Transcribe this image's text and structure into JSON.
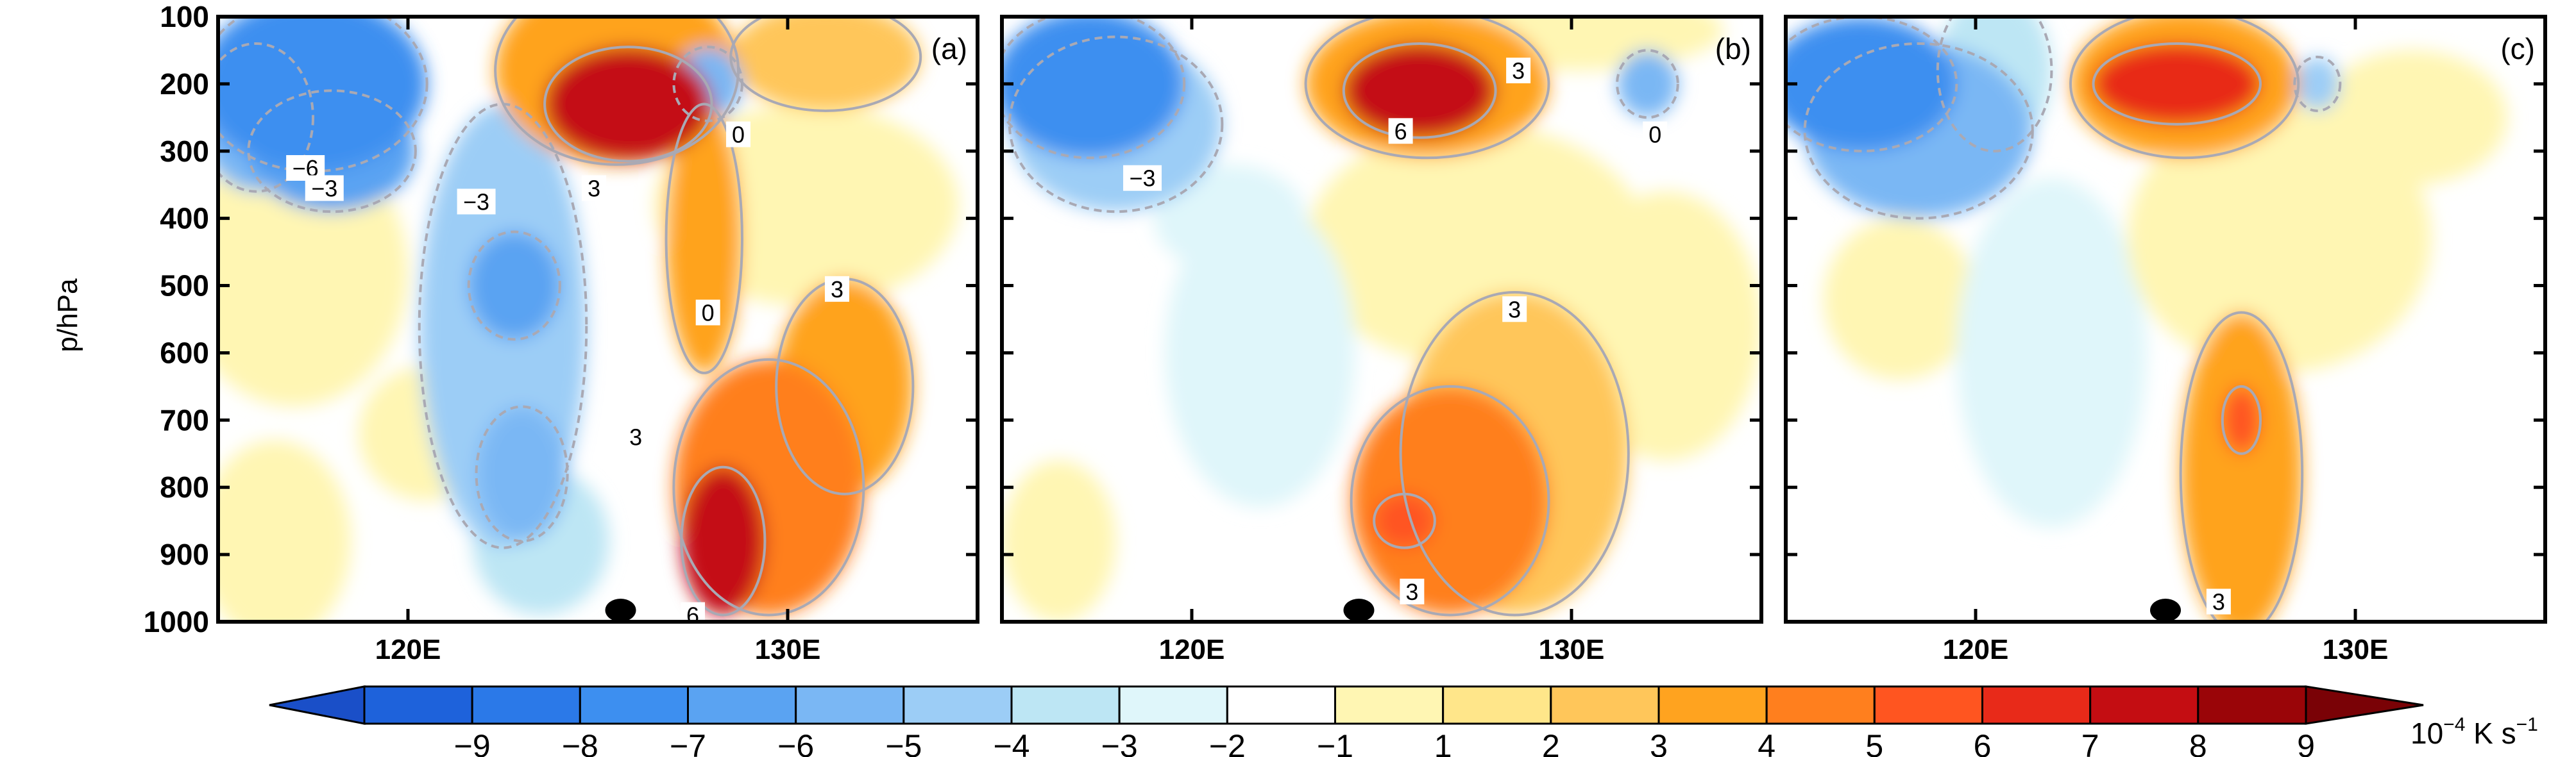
{
  "chart_data": {
    "type": "heatmap",
    "ylabel": "p/hPa",
    "y_ticks": [
      "100",
      "200",
      "300",
      "400",
      "500",
      "600",
      "700",
      "800",
      "900",
      "1000"
    ],
    "x_ticks": [
      "120E",
      "130E"
    ],
    "xlim": [
      115,
      135
    ],
    "ylim": [
      1000,
      100
    ],
    "panels": [
      {
        "label": "(a)",
        "marker_lon": 125.6,
        "contour_labels": [
          {
            "text": "−6",
            "lon": 117.3,
            "p": 325
          },
          {
            "text": "−3",
            "lon": 117.8,
            "p": 355
          },
          {
            "text": "−3",
            "lon": 121.8,
            "p": 375
          },
          {
            "text": "3",
            "lon": 124.9,
            "p": 355
          },
          {
            "text": "0",
            "lon": 128.7,
            "p": 275
          },
          {
            "text": "0",
            "lon": 127.9,
            "p": 540
          },
          {
            "text": "3",
            "lon": 131.3,
            "p": 505
          },
          {
            "text": "3",
            "lon": 126.0,
            "p": 725
          },
          {
            "text": "6",
            "lon": 127.5,
            "p": 990
          }
        ],
        "cells": [
          {
            "lon": 117.5,
            "p": 200,
            "v": -6.5,
            "rx": 3.0,
            "ry": 130
          },
          {
            "lon": 118.0,
            "p": 300,
            "v": -5.5,
            "rx": 2.2,
            "ry": 90
          },
          {
            "lon": 116.0,
            "p": 250,
            "v": -4.5,
            "rx": 1.5,
            "ry": 110
          },
          {
            "lon": 122.5,
            "p": 560,
            "v": -4.0,
            "rx": 2.2,
            "ry": 330
          },
          {
            "lon": 122.8,
            "p": 500,
            "v": -5.2,
            "rx": 1.2,
            "ry": 80
          },
          {
            "lon": 123.0,
            "p": 780,
            "v": -5.0,
            "rx": 1.2,
            "ry": 100
          },
          {
            "lon": 123.5,
            "p": 880,
            "v": -2.5,
            "rx": 1.8,
            "ry": 110
          },
          {
            "lon": 125.8,
            "p": 230,
            "v": 8.5,
            "rx": 2.2,
            "ry": 85
          },
          {
            "lon": 125.5,
            "p": 180,
            "v": 4.5,
            "rx": 3.2,
            "ry": 140
          },
          {
            "lon": 127.9,
            "p": 200,
            "v": -4.5,
            "rx": 0.9,
            "ry": 55
          },
          {
            "lon": 127.8,
            "p": 430,
            "v": 4.5,
            "rx": 1.0,
            "ry": 200
          },
          {
            "lon": 128.3,
            "p": 880,
            "v": 8.5,
            "rx": 1.1,
            "ry": 110
          },
          {
            "lon": 129.5,
            "p": 800,
            "v": 5.0,
            "rx": 2.5,
            "ry": 190
          },
          {
            "lon": 131.5,
            "p": 650,
            "v": 4.5,
            "rx": 1.8,
            "ry": 160
          },
          {
            "lon": 131.0,
            "p": 160,
            "v": 3.0,
            "rx": 2.5,
            "ry": 80
          },
          {
            "lon": 117.0,
            "p": 480,
            "v": 1.5,
            "rx": 3.0,
            "ry": 200
          },
          {
            "lon": 116.5,
            "p": 880,
            "v": 1.8,
            "rx": 2.0,
            "ry": 150
          },
          {
            "lon": 130.5,
            "p": 380,
            "v": 1.5,
            "rx": 4.0,
            "ry": 150
          },
          {
            "lon": 120.5,
            "p": 720,
            "v": 1.3,
            "rx": 1.8,
            "ry": 100
          }
        ]
      },
      {
        "label": "(b)",
        "marker_lon": 124.4,
        "contour_labels": [
          {
            "text": "3",
            "lon": 128.6,
            "p": 180
          },
          {
            "text": "6",
            "lon": 125.5,
            "p": 270
          },
          {
            "text": "−3",
            "lon": 118.7,
            "p": 340
          },
          {
            "text": "0",
            "lon": 132.2,
            "p": 275
          },
          {
            "text": "3",
            "lon": 128.5,
            "p": 535
          },
          {
            "text": "3",
            "lon": 125.8,
            "p": 955
          }
        ],
        "cells": [
          {
            "lon": 117.3,
            "p": 200,
            "v": -6.5,
            "rx": 2.5,
            "ry": 110
          },
          {
            "lon": 118.0,
            "p": 260,
            "v": -4.0,
            "rx": 2.8,
            "ry": 130
          },
          {
            "lon": 126.0,
            "p": 210,
            "v": 8.3,
            "rx": 2.0,
            "ry": 70
          },
          {
            "lon": 126.2,
            "p": 200,
            "v": 4.5,
            "rx": 3.2,
            "ry": 110
          },
          {
            "lon": 132.0,
            "p": 200,
            "v": -4.5,
            "rx": 0.8,
            "ry": 50
          },
          {
            "lon": 126.8,
            "p": 820,
            "v": 5.5,
            "rx": 2.6,
            "ry": 170
          },
          {
            "lon": 128.5,
            "p": 750,
            "v": 3.8,
            "rx": 3.0,
            "ry": 240
          },
          {
            "lon": 125.6,
            "p": 850,
            "v": 6.8,
            "rx": 0.8,
            "ry": 40
          },
          {
            "lon": 121.8,
            "p": 600,
            "v": -1.7,
            "rx": 2.5,
            "ry": 230
          },
          {
            "lon": 121.0,
            "p": 400,
            "v": -1.3,
            "rx": 2.0,
            "ry": 80
          },
          {
            "lon": 127.5,
            "p": 440,
            "v": 1.5,
            "rx": 4.5,
            "ry": 180
          },
          {
            "lon": 132.5,
            "p": 560,
            "v": 1.6,
            "rx": 2.5,
            "ry": 200
          },
          {
            "lon": 130.0,
            "p": 120,
            "v": 1.8,
            "rx": 4.0,
            "ry": 60
          },
          {
            "lon": 116.5,
            "p": 880,
            "v": 1.3,
            "rx": 1.5,
            "ry": 120
          }
        ]
      },
      {
        "label": "(c)",
        "marker_lon": 125.0,
        "contour_labels": [
          {
            "text": "3",
            "lon": 126.4,
            "p": 970
          }
        ],
        "cells": [
          {
            "lon": 117.0,
            "p": 200,
            "v": -6.5,
            "rx": 2.5,
            "ry": 100
          },
          {
            "lon": 118.5,
            "p": 270,
            "v": -4.5,
            "rx": 3.0,
            "ry": 130
          },
          {
            "lon": 120.5,
            "p": 180,
            "v": -3.0,
            "rx": 1.5,
            "ry": 120
          },
          {
            "lon": 125.3,
            "p": 200,
            "v": 7.5,
            "rx": 2.2,
            "ry": 60
          },
          {
            "lon": 125.5,
            "p": 200,
            "v": 4.8,
            "rx": 3.0,
            "ry": 110
          },
          {
            "lon": 127.0,
            "p": 780,
            "v": 4.2,
            "rx": 1.6,
            "ry": 240
          },
          {
            "lon": 127.0,
            "p": 700,
            "v": 6.0,
            "rx": 0.5,
            "ry": 50
          },
          {
            "lon": 129.0,
            "p": 200,
            "v": -3.5,
            "rx": 0.6,
            "ry": 40
          },
          {
            "lon": 122.0,
            "p": 600,
            "v": -1.5,
            "rx": 2.5,
            "ry": 260
          },
          {
            "lon": 128.0,
            "p": 430,
            "v": 1.6,
            "rx": 4.0,
            "ry": 200
          },
          {
            "lon": 131.5,
            "p": 250,
            "v": 1.5,
            "rx": 2.5,
            "ry": 100
          },
          {
            "lon": 118.0,
            "p": 520,
            "v": 1.2,
            "rx": 2.0,
            "ry": 120
          }
        ]
      }
    ],
    "colorbar": {
      "tick_labels": [
        "−9",
        "−8",
        "−7",
        "−6",
        "−5",
        "−4",
        "−3",
        "−2",
        "−1",
        "1",
        "2",
        "3",
        "4",
        "5",
        "6",
        "7",
        "8",
        "9"
      ],
      "levels": [
        -9,
        -8,
        -7,
        -6,
        -5,
        -4,
        -3,
        -2,
        -1,
        1,
        2,
        3,
        4,
        5,
        6,
        7,
        8,
        9
      ],
      "colors": [
        "#1e62db",
        "#2b79e8",
        "#3d8ff0",
        "#5aa3f2",
        "#7ab7f4",
        "#9ccdf6",
        "#bde6f4",
        "#dff6fa",
        "#ffffff",
        "#fff6b3",
        "#ffe68a",
        "#ffc65a",
        "#ffa31f",
        "#ff7f1e",
        "#ff5520",
        "#e82a19",
        "#c40d12",
        "#9a0508"
      ],
      "unit_base": "10",
      "unit_exp": "−4",
      "unit_rest": " K s",
      "unit_exp2": "−1"
    }
  }
}
